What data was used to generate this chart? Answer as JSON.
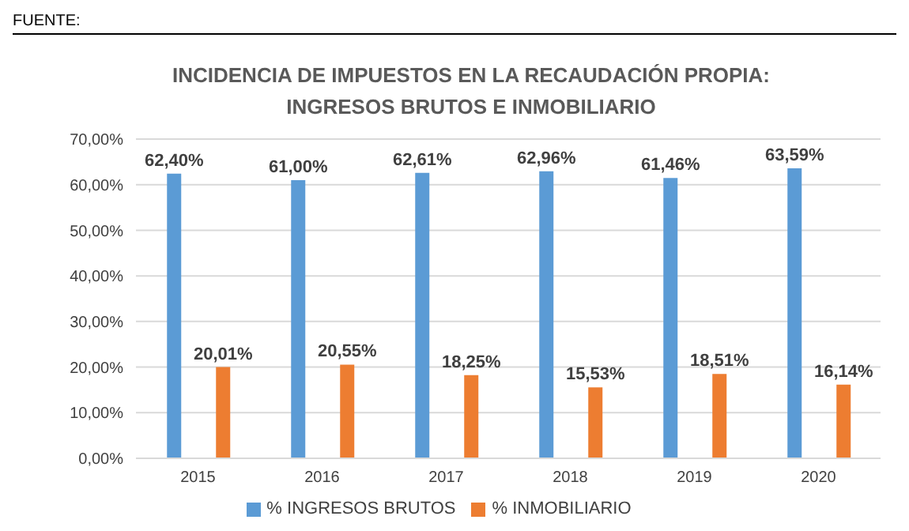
{
  "chart_data": {
    "type": "bar",
    "title": "INCIDENCIA DE IMPUESTOS EN LA RECAUDACIÓN PROPIA:\nINGRESOS BRUTOS E INMOBILIARIO",
    "annotations": [
      "FUENTE:"
    ],
    "categories": [
      "2015",
      "2016",
      "2017",
      "2018",
      "2019",
      "2020"
    ],
    "series": [
      {
        "name": "% INGRESOS BRUTOS",
        "color": "#5b9bd5",
        "values": [
          62.4,
          61.0,
          62.61,
          62.96,
          61.46,
          63.59
        ],
        "value_labels": [
          "62,40%",
          "61,00%",
          "62,61%",
          "62,96%",
          "61,46%",
          "63,59%"
        ]
      },
      {
        "name": "% INMOBILIARIO",
        "color": "#ed7d31",
        "values": [
          20.01,
          20.55,
          18.25,
          15.53,
          18.51,
          16.14
        ],
        "value_labels": [
          "20,01%",
          "20,55%",
          "18,25%",
          "15,53%",
          "18,51%",
          "16,14%"
        ]
      }
    ],
    "ylim": [
      0,
      70
    ],
    "yticks": [
      {
        "value": 0,
        "label": "0,00%"
      },
      {
        "value": 10,
        "label": "10,00%"
      },
      {
        "value": 20,
        "label": "20,00%"
      },
      {
        "value": 30,
        "label": "30,00%"
      },
      {
        "value": 40,
        "label": "40,00%"
      },
      {
        "value": 50,
        "label": "50,00%"
      },
      {
        "value": 60,
        "label": "60,00%"
      },
      {
        "value": 70,
        "label": "70,00%"
      }
    ],
    "grid": "y",
    "legend": "bottom"
  }
}
